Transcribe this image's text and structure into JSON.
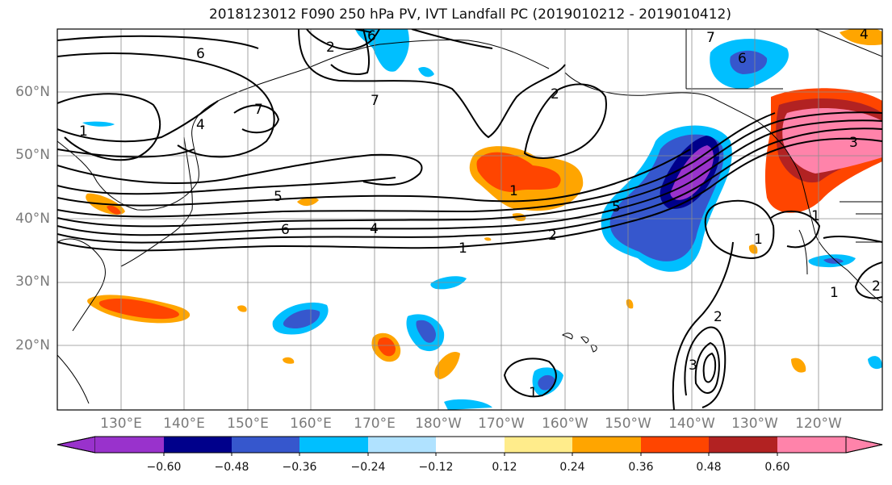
{
  "title": "2018123012 F090 250 hPa PV, IVT Landfall PC (2019010212 - 2019010412)",
  "lat_labels": [
    "60°N",
    "50°N",
    "40°N",
    "30°N",
    "20°N"
  ],
  "lon_labels": [
    "130°E",
    "140°E",
    "150°E",
    "160°E",
    "170°E",
    "180°W",
    "170°W",
    "160°W",
    "150°W",
    "140°W",
    "130°W",
    "120°W"
  ],
  "colorbar": {
    "ticks": [
      "−0.60",
      "−0.48",
      "−0.36",
      "−0.24",
      "−0.12",
      "0.12",
      "0.24",
      "0.36",
      "0.48",
      "0.60"
    ],
    "colors": [
      "#9932CC",
      "#00008B",
      "#3657CD",
      "#00BFFF",
      "#B0E2FF",
      "#FFFFFF",
      "#FFEC8B",
      "#FFA500",
      "#FF4500",
      "#B22222",
      "#FF83AA"
    ]
  },
  "contour_labels": [
    "1",
    "2",
    "4",
    "5",
    "6",
    "7",
    "1",
    "2",
    "5",
    "6",
    "7",
    "3",
    "2",
    "1",
    "6",
    "4",
    "1",
    "2",
    "1",
    "4",
    "2",
    "3",
    "1",
    "6",
    "7",
    "1"
  ]
}
